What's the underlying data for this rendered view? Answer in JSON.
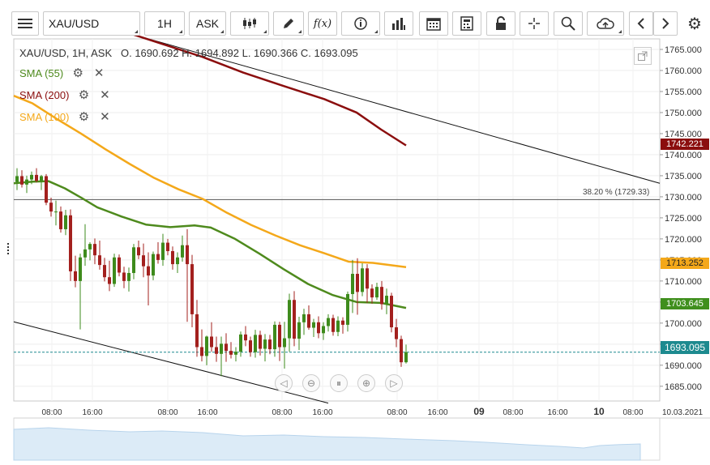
{
  "toolbar": {
    "menu_icon": "hamburger-menu-icon",
    "symbol": "XAU/USD",
    "timeframe": "1H",
    "price_side": "ASK",
    "tools": [
      "candlestick-style-icon",
      "pencil-draw-icon",
      "function-fx-icon",
      "info-icon",
      "bar-chart-icon",
      "calendar-icon",
      "calculator-icon",
      "lock-icon",
      "crosshair-icon",
      "zoom-search-icon",
      "cloud-upload-icon",
      "chevron-left-icon",
      "chevron-right-icon",
      "gear-icon"
    ],
    "fx_label": "f(x)"
  },
  "legend": {
    "header": "XAU/USD, 1H, ASK   O. 1690.692 H. 1694.892 L. 1690.366 C. 1693.095",
    "indicators": [
      {
        "label": "SMA (55)",
        "color": "#4e8a1d"
      },
      {
        "label": "SMA (200)",
        "color": "#8b0e0e"
      },
      {
        "label": "SMA (100)",
        "color": "#f4a81a"
      }
    ]
  },
  "fib_label": "38.20 % (1729.33)",
  "price_tags": [
    {
      "text": "1742.221",
      "color": "#8b0e0e"
    },
    {
      "text": "1713.252",
      "color": "#f4a81a"
    },
    {
      "text": "1703.645",
      "color": "#3f8f1d"
    },
    {
      "text": "1693.095",
      "color": "#1d8a8f"
    }
  ],
  "y_axis_ticks": [
    "1765.000",
    "1760.000",
    "1755.000",
    "1750.000",
    "1745.000",
    "1740.000",
    "1735.000",
    "1730.000",
    "1725.000",
    "1720.000",
    "1715.000",
    "1710.000",
    "1705.000",
    "1700.000",
    "1695.000",
    "1690.000",
    "1685.000"
  ],
  "x_axis_ticks": [
    "08:00",
    "16:00",
    "08:00",
    "16:00",
    "08:00",
    "16:00",
    "08:00",
    "16:00",
    "09",
    "08:00",
    "16:00",
    "10",
    "08:00",
    "10.03.2021"
  ],
  "chart_data": {
    "type": "candlestick",
    "symbol": "XAU/USD",
    "timeframe": "1H",
    "ylim": [
      1681.5,
      1767.5
    ],
    "last_close": 1693.095,
    "sma": [
      {
        "name": "SMA (55)",
        "values_end": 1703.645
      },
      {
        "name": "SMA (200)",
        "values_end": 1742.221
      },
      {
        "name": "SMA (100)",
        "values_end": 1713.252
      }
    ],
    "fibonacci": {
      "level": "38.20 %",
      "price": 1729.33
    },
    "candles": [
      [
        1733.5,
        1736.8,
        1731.6,
        1734.9
      ],
      [
        1734.9,
        1736.3,
        1732.2,
        1732.9
      ],
      [
        1732.9,
        1735.0,
        1730.9,
        1734.1
      ],
      [
        1734.1,
        1736.0,
        1733.0,
        1735.2
      ],
      [
        1735.2,
        1736.8,
        1733.4,
        1733.8
      ],
      [
        1733.8,
        1735.2,
        1731.6,
        1734.9
      ],
      [
        1734.9,
        1735.4,
        1728.0,
        1728.6
      ],
      [
        1728.6,
        1729.8,
        1725.3,
        1726.5
      ],
      [
        1726.5,
        1729.1,
        1723.2,
        1726.5
      ],
      [
        1726.5,
        1727.7,
        1721.5,
        1722.3
      ],
      [
        1722.3,
        1726.9,
        1720.9,
        1725.6
      ],
      [
        1725.6,
        1727.0,
        1710.0,
        1712.3
      ],
      [
        1712.3,
        1716.0,
        1708.5,
        1710.0
      ],
      [
        1710.0,
        1716.5,
        1698.5,
        1715.6
      ],
      [
        1715.6,
        1723.5,
        1713.6,
        1717.5
      ],
      [
        1717.5,
        1719.2,
        1714.9,
        1718.8
      ],
      [
        1718.8,
        1720.1,
        1714.0,
        1716.1
      ],
      [
        1716.1,
        1719.6,
        1712.7,
        1713.8
      ],
      [
        1713.8,
        1715.5,
        1709.9,
        1710.9
      ],
      [
        1710.9,
        1714.8,
        1707.6,
        1709.3
      ],
      [
        1709.3,
        1716.5,
        1708.6,
        1715.6
      ],
      [
        1715.6,
        1716.3,
        1711.1,
        1712.0
      ],
      [
        1712.0,
        1713.4,
        1708.3,
        1710.0
      ],
      [
        1710.0,
        1713.2,
        1707.5,
        1711.9
      ],
      [
        1711.9,
        1718.8,
        1710.4,
        1718.0
      ],
      [
        1718.0,
        1719.6,
        1715.2,
        1716.1
      ],
      [
        1716.1,
        1718.9,
        1710.9,
        1713.5
      ],
      [
        1713.5,
        1716.8,
        1704.2,
        1711.3
      ],
      [
        1711.3,
        1717.0,
        1710.2,
        1716.4
      ],
      [
        1716.4,
        1719.2,
        1714.1,
        1715.0
      ],
      [
        1715.0,
        1721.2,
        1713.6,
        1719.1
      ],
      [
        1719.1,
        1720.0,
        1716.1,
        1717.1
      ],
      [
        1717.1,
        1718.2,
        1712.7,
        1714.0
      ],
      [
        1714.0,
        1716.8,
        1711.9,
        1715.6
      ],
      [
        1715.6,
        1720.8,
        1714.6,
        1718.5
      ],
      [
        1718.5,
        1722.3,
        1700.3,
        1714.0
      ],
      [
        1714.0,
        1716.2,
        1699.0,
        1702.1
      ],
      [
        1702.1,
        1705.5,
        1692.0,
        1694.3
      ],
      [
        1694.3,
        1698.5,
        1690.9,
        1692.2
      ],
      [
        1692.2,
        1697.0,
        1690.0,
        1696.8
      ],
      [
        1696.8,
        1700.2,
        1693.2,
        1694.3
      ],
      [
        1694.3,
        1696.8,
        1690.8,
        1692.7
      ],
      [
        1692.7,
        1696.8,
        1687.4,
        1695.1
      ],
      [
        1695.1,
        1697.6,
        1690.8,
        1693.4
      ],
      [
        1693.4,
        1695.5,
        1691.6,
        1692.5
      ],
      [
        1692.5,
        1694.3,
        1690.9,
        1693.2
      ],
      [
        1693.2,
        1698.0,
        1692.0,
        1697.3
      ],
      [
        1697.3,
        1699.3,
        1694.5,
        1695.9
      ],
      [
        1695.9,
        1696.8,
        1692.0,
        1693.1
      ],
      [
        1693.1,
        1698.4,
        1691.8,
        1697.2
      ],
      [
        1697.2,
        1698.2,
        1692.3,
        1693.9
      ],
      [
        1693.9,
        1697.4,
        1690.9,
        1696.1
      ],
      [
        1696.1,
        1697.2,
        1692.6,
        1693.8
      ],
      [
        1693.8,
        1700.4,
        1692.0,
        1699.6
      ],
      [
        1699.6,
        1700.3,
        1691.0,
        1694.3
      ],
      [
        1694.3,
        1700.3,
        1689.2,
        1696.4
      ],
      [
        1696.4,
        1707.0,
        1693.2,
        1705.5
      ],
      [
        1705.5,
        1707.6,
        1694.5,
        1696.3
      ],
      [
        1696.3,
        1701.5,
        1693.6,
        1700.2
      ],
      [
        1700.2,
        1703.4,
        1697.2,
        1702.1
      ],
      [
        1702.1,
        1704.2,
        1698.4,
        1698.9
      ],
      [
        1698.9,
        1701.0,
        1696.7,
        1700.2
      ],
      [
        1700.2,
        1701.6,
        1696.4,
        1697.6
      ],
      [
        1697.6,
        1700.2,
        1696.0,
        1699.3
      ],
      [
        1699.3,
        1702.1,
        1698.0,
        1701.2
      ],
      [
        1701.2,
        1702.0,
        1697.0,
        1697.9
      ],
      [
        1697.9,
        1701.6,
        1696.9,
        1700.6
      ],
      [
        1700.6,
        1701.4,
        1697.5,
        1699.6
      ],
      [
        1699.6,
        1707.5,
        1698.0,
        1706.9
      ],
      [
        1706.9,
        1715.0,
        1702.4,
        1711.7
      ],
      [
        1711.7,
        1715.4,
        1702.0,
        1707.4
      ],
      [
        1707.4,
        1714.2,
        1706.4,
        1713.0
      ],
      [
        1713.0,
        1714.0,
        1704.8,
        1708.2
      ],
      [
        1708.2,
        1709.2,
        1704.6,
        1706.1
      ],
      [
        1706.1,
        1709.6,
        1705.5,
        1708.6
      ],
      [
        1708.6,
        1710.0,
        1703.2,
        1704.5
      ],
      [
        1704.5,
        1708.2,
        1702.1,
        1706.5
      ],
      [
        1706.5,
        1707.2,
        1697.8,
        1699.0
      ],
      [
        1699.0,
        1701.0,
        1694.3,
        1696.2
      ],
      [
        1696.2,
        1697.0,
        1689.6,
        1690.7
      ],
      [
        1690.7,
        1694.9,
        1690.4,
        1693.1
      ]
    ]
  }
}
